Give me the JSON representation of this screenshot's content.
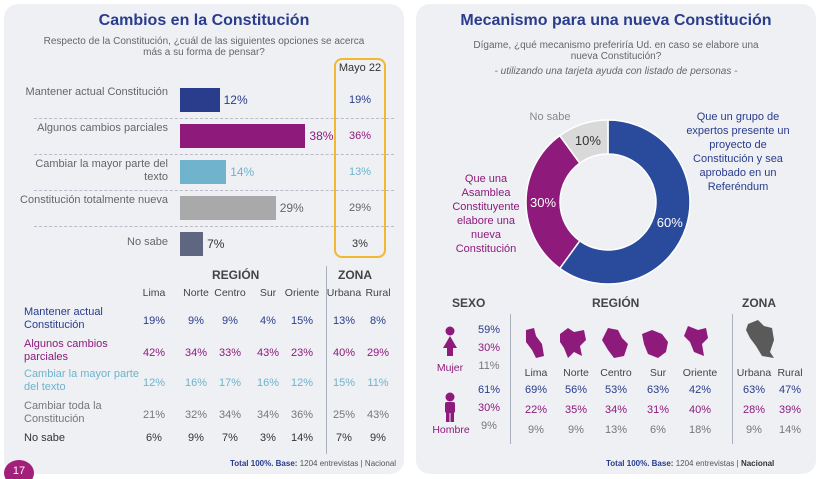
{
  "left": {
    "title": "Cambios en la Constitución",
    "question": "Respecto de la Constitución, ¿cuál de las siguientes opciones se acerca más a su forma de pensar?",
    "mayo_label": "Mayo 22",
    "footer_total": "Total 100%.",
    "footer_base_label": "Base:",
    "footer_rest": "1204 entrevistas | Nacional",
    "page_number": "17",
    "table": {
      "region_label": "REGIÓN",
      "zona_label": "ZONA",
      "columns": [
        "Lima",
        "Norte",
        "Centro",
        "Sur",
        "Oriente",
        "Urbana",
        "Rural"
      ],
      "rows": [
        {
          "label": "Mantener actual Constitución",
          "color": "#2a3c8c",
          "values": [
            "19%",
            "9%",
            "9%",
            "4%",
            "15%",
            "13%",
            "8%"
          ]
        },
        {
          "label": "Algunos cambios parciales",
          "color": "#8e1a7c",
          "values": [
            "42%",
            "34%",
            "33%",
            "43%",
            "23%",
            "40%",
            "29%"
          ]
        },
        {
          "label": "Cambiar la mayor parte del texto",
          "color": "#6fb3cc",
          "values": [
            "12%",
            "16%",
            "17%",
            "16%",
            "12%",
            "15%",
            "11%"
          ]
        },
        {
          "label": "Cambiar toda la Constitución",
          "color": "#777777",
          "values": [
            "21%",
            "32%",
            "34%",
            "34%",
            "36%",
            "25%",
            "43%"
          ]
        },
        {
          "label": "No sabe",
          "color": "#333333",
          "values": [
            "6%",
            "9%",
            "7%",
            "3%",
            "14%",
            "7%",
            "9%"
          ]
        }
      ]
    }
  },
  "right": {
    "title": "Mecanismo para una nueva Constitución",
    "question": "Dígame, ¿qué mecanismo preferiría Ud. en caso se elabore una nueva Constitución?",
    "note": "- utilizando una tarjeta ayuda con listado de personas -",
    "footer_total": "Total 100%.",
    "footer_base_label": "Base:",
    "footer_rest": "1204 entrevistas |",
    "footer_scope": "Nacional",
    "sexo_label": "SEXO",
    "region_label": "REGIÓN",
    "zona_label": "ZONA",
    "mujer_label": "Mujer",
    "hombre_label": "Hombre",
    "mujer_values": [
      "59%",
      "30%",
      "11%"
    ],
    "hombre_values": [
      "61%",
      "30%",
      "9%"
    ],
    "columns": [
      "Lima",
      "Norte",
      "Centro",
      "Sur",
      "Oriente",
      "Urbana",
      "Rural"
    ],
    "col_values": [
      [
        "69%",
        "22%",
        "9%"
      ],
      [
        "56%",
        "35%",
        "9%"
      ],
      [
        "53%",
        "34%",
        "13%"
      ],
      [
        "63%",
        "31%",
        "6%"
      ],
      [
        "42%",
        "40%",
        "18%"
      ],
      [
        "63%",
        "28%",
        "9%"
      ],
      [
        "47%",
        "39%",
        "14%"
      ]
    ],
    "row_colors": [
      "#2a3c8c",
      "#8e1a7c",
      "#777777"
    ]
  },
  "chart_data": [
    {
      "type": "bar",
      "title": "Cambios en la Constitución",
      "categories": [
        "Mantener actual Constitución",
        "Algunos cambios parciales",
        "Cambiar la mayor parte del texto",
        "Constitución totalmente nueva",
        "No sabe"
      ],
      "values": [
        12,
        38,
        14,
        29,
        7
      ],
      "value_labels": [
        "12%",
        "38%",
        "14%",
        "29%",
        "7%"
      ],
      "colors": [
        "#2a3c8c",
        "#8e1a7c",
        "#6fb3cc",
        "#a9a9a9",
        "#5f6680"
      ],
      "label_colors": [
        "#2a3c8c",
        "#8e1a7c",
        "#6fb3cc",
        "#666666",
        "#333333"
      ],
      "comparison": {
        "name": "Mayo 22",
        "values": [
          19,
          36,
          13,
          29,
          3
        ],
        "value_labels": [
          "19%",
          "36%",
          "13%",
          "29%",
          "3%"
        ]
      },
      "xlim": [
        0,
        40
      ]
    },
    {
      "type": "pie",
      "title": "Mecanismo para una nueva Constitución",
      "categories": [
        "Que un grupo de expertos presente un proyecto de Constitución y sea aprobado en un Referéndum",
        "Que una Asamblea Constituyente elabore una nueva Constitución",
        "No sabe"
      ],
      "values": [
        60,
        30,
        10
      ],
      "value_labels": [
        "60%",
        "30%",
        "10%"
      ],
      "colors": [
        "#2a4a9c",
        "#8e1a7c",
        "#d9d9d9"
      ],
      "label_colors": [
        "#2a3c8c",
        "#8e1a7c",
        "#888888"
      ]
    }
  ]
}
